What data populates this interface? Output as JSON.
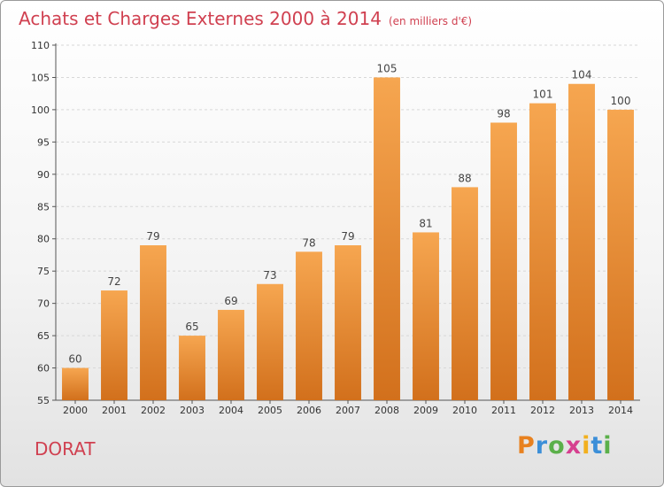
{
  "header": {
    "title": "Achats et Charges Externes 2000 à 2014",
    "subtitle": "(en milliers d'€)"
  },
  "footer": {
    "town": "DORAT",
    "logo_letters": [
      "P",
      "r",
      "o",
      "x",
      "i",
      "t",
      "i"
    ],
    "logo_colors": [
      "#e8811f",
      "#3c8fd8",
      "#5bb04a",
      "#d63f8f",
      "#f2b01e",
      "#3c8fd8",
      "#5bb04a"
    ]
  },
  "chart_data": {
    "type": "bar",
    "categories": [
      "2000",
      "2001",
      "2002",
      "2003",
      "2004",
      "2005",
      "2006",
      "2007",
      "2008",
      "2009",
      "2010",
      "2011",
      "2012",
      "2013",
      "2014"
    ],
    "values": [
      60,
      72,
      79,
      65,
      69,
      73,
      78,
      79,
      105,
      81,
      88,
      98,
      101,
      104,
      100
    ],
    "ylim": [
      55,
      110
    ],
    "yticks": [
      55,
      60,
      65,
      70,
      75,
      80,
      85,
      90,
      95,
      100,
      105,
      110
    ],
    "grid": true,
    "bar_color": "#ee8a30"
  }
}
